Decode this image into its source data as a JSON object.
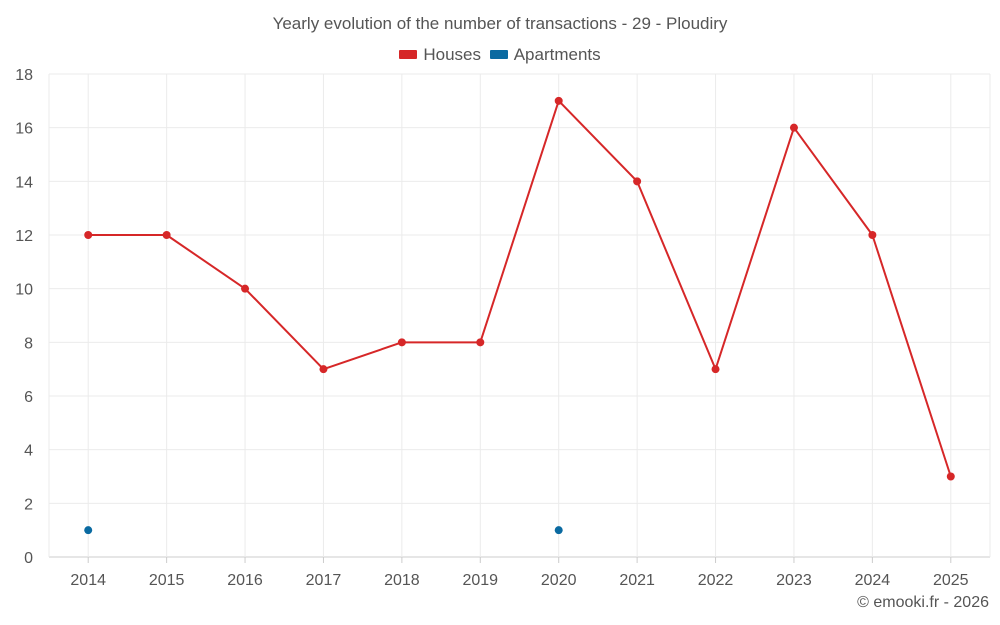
{
  "chart_data": {
    "type": "line",
    "title": "Yearly evolution of the number of transactions - 29 - Ploudiry",
    "categories": [
      "2014",
      "2015",
      "2016",
      "2017",
      "2018",
      "2019",
      "2020",
      "2021",
      "2022",
      "2023",
      "2024",
      "2025"
    ],
    "ylim": [
      0,
      18
    ],
    "yticks": [
      0,
      2,
      4,
      6,
      8,
      10,
      12,
      14,
      16,
      18
    ],
    "grid": true,
    "legend_position": "top-center",
    "series": [
      {
        "name": "Houses",
        "color": "#d62728",
        "values": [
          12,
          12,
          10,
          7,
          8,
          8,
          17,
          14,
          7,
          16,
          12,
          3
        ]
      },
      {
        "name": "Apartments",
        "color": "#0a6aa1",
        "values": [
          1,
          null,
          null,
          null,
          null,
          null,
          1,
          null,
          null,
          null,
          null,
          null
        ]
      }
    ]
  },
  "credit": "© emooki.fr - 2026"
}
